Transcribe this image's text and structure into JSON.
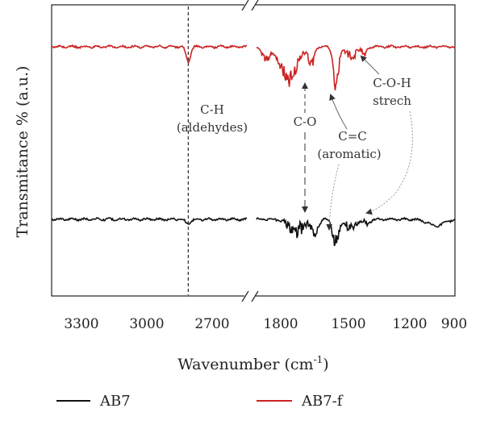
{
  "chart_data": {
    "type": "line",
    "title": "",
    "xlabel": "Wavenumber (cm",
    "xlabel_sup": "-1",
    "xlabel_end": ")",
    "ylabel": "Transmitance % (a.u.)",
    "x_ticks": [
      "3300",
      "3000",
      "2700",
      "1800",
      "1500",
      "1200",
      "900"
    ],
    "x_axis_break": true,
    "xlim_left": [
      3450,
      2350
    ],
    "xlim_right": [
      1950,
      900
    ],
    "series": [
      {
        "name": "AB7",
        "color": "#111111",
        "baseline": 272,
        "features": [
          {
            "x": 2680,
            "depth": 6,
            "width": 20
          },
          {
            "x": 1740,
            "depth": 14,
            "width": 60,
            "noise": 12
          },
          {
            "x": 1640,
            "depth": 16,
            "width": 25,
            "noise": 10
          },
          {
            "x": 1530,
            "depth": 30,
            "width": 22,
            "noise": 14
          },
          {
            "x": 1450,
            "depth": 12,
            "width": 35,
            "noise": 10
          },
          {
            "x": 1370,
            "depth": 6,
            "width": 25,
            "noise": 6
          },
          {
            "x": 1000,
            "depth": 8,
            "width": 60
          }
        ]
      },
      {
        "name": "AB7-f",
        "color": "#cc2222",
        "baseline": 58,
        "features": [
          {
            "x": 2680,
            "depth": 18,
            "width": 18
          },
          {
            "x": 1900,
            "depth": 14,
            "width": 30,
            "noise": 6
          },
          {
            "x": 1780,
            "depth": 40,
            "width": 60,
            "noise": 14
          },
          {
            "x": 1660,
            "depth": 22,
            "width": 20,
            "noise": 10
          },
          {
            "x": 1530,
            "depth": 48,
            "width": 20,
            "noise": 14
          },
          {
            "x": 1450,
            "depth": 14,
            "width": 30,
            "noise": 10
          },
          {
            "x": 1380,
            "depth": 8,
            "width": 20,
            "noise": 6
          }
        ]
      }
    ],
    "reference_line": {
      "x": 2680,
      "style": "dashed"
    },
    "annotations": [
      {
        "lines": [
          "C-H",
          "(aldehydes)"
        ]
      },
      {
        "lines": [
          "C-O"
        ]
      },
      {
        "lines": [
          "C=C",
          "(aromatic)"
        ]
      },
      {
        "lines": [
          "C-O-H",
          "strech"
        ]
      }
    ],
    "legend": {
      "placement": "bottom",
      "entries": [
        "AB7",
        "AB7-f"
      ]
    }
  }
}
